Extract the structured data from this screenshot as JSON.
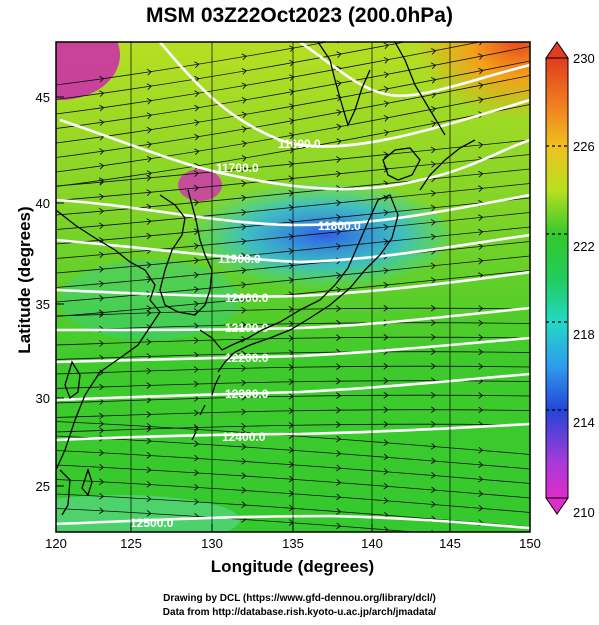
{
  "title": "MSM 03Z22Oct2023 (200.0hPa)",
  "x_axis_label": "Longitude (degrees)",
  "y_axis_label": "Latitude  (degrees)",
  "x_ticks": [
    "120",
    "125",
    "130",
    "135",
    "140",
    "145",
    "150"
  ],
  "y_ticks": [
    "25",
    "30",
    "35",
    "40",
    "45"
  ],
  "colorbar_ticks": [
    "210",
    "214",
    "218",
    "222",
    "226",
    "230"
  ],
  "contour_labels": [
    "11600.0",
    "11700.0",
    "11800.0",
    "11900.0",
    "12000.0",
    "12100.0",
    "12200.0",
    "12300.0",
    "12400.0",
    "12500.0"
  ],
  "credit_lines": [
    "Drawing by DCL (https://www.gfd-dennou.org/library/dcl/)",
    "Data from http://database.rish.kyoto-u.ac.jp/arch/jmadata/"
  ],
  "colors": {
    "cmap_low": "#e23cc8",
    "cmap_mid": "#2fcc2a",
    "cmap_high": "#e83b1e",
    "contour": "#ffffff"
  }
}
